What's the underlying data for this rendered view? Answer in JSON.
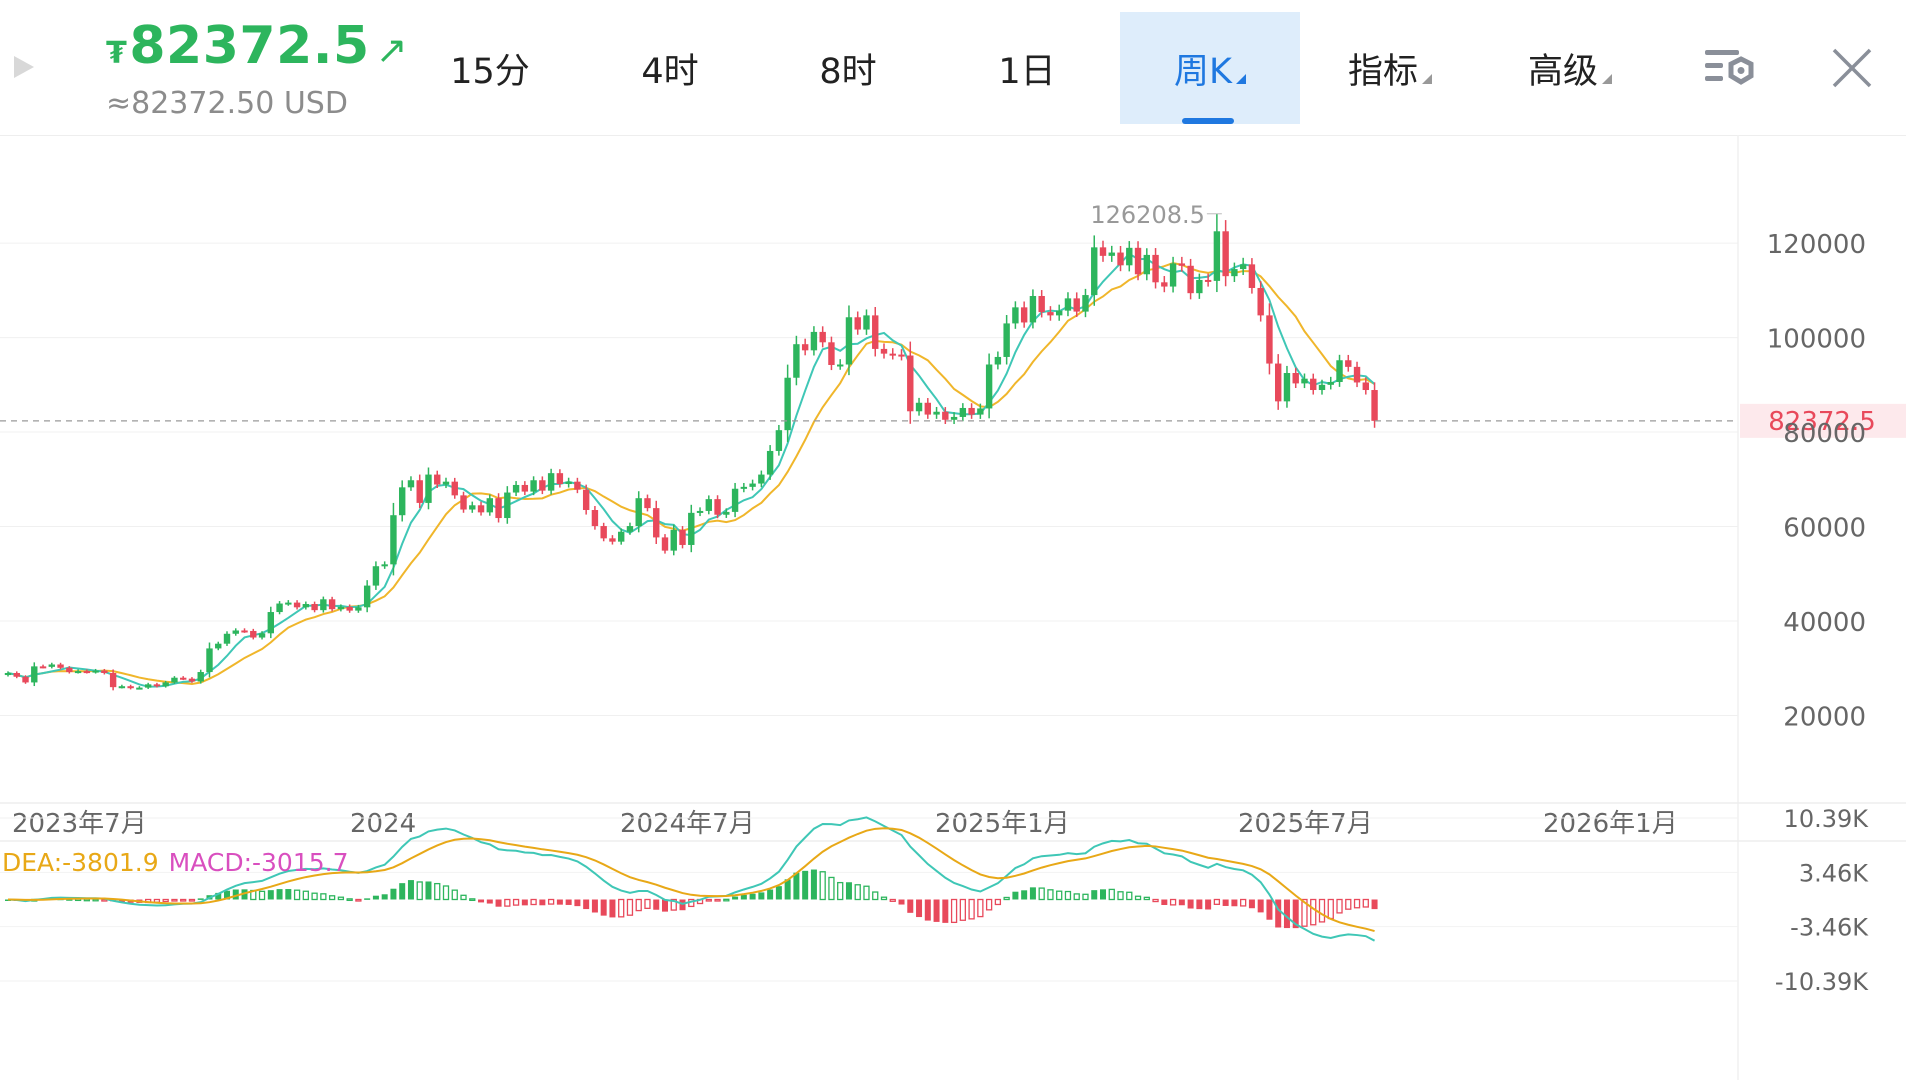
{
  "header": {
    "currency_symbol": "₮",
    "price": "82372.5",
    "price_usd": "≈82372.50 USD",
    "price_color": "#2db55d",
    "icons": {
      "play": "play-icon",
      "trend": "arrow-up-right-icon",
      "settings": "chart-settings-icon",
      "close": "close-icon"
    }
  },
  "tabs": [
    {
      "label": "15分",
      "active": false,
      "dropdown": false
    },
    {
      "label": "4时",
      "active": false,
      "dropdown": false
    },
    {
      "label": "8时",
      "active": false,
      "dropdown": false
    },
    {
      "label": "1日",
      "active": false,
      "dropdown": false
    },
    {
      "label": "周K",
      "active": true,
      "dropdown": true
    },
    {
      "label": "指标",
      "active": false,
      "dropdown": true
    },
    {
      "label": "高级",
      "active": false,
      "dropdown": true
    }
  ],
  "colors": {
    "up": "#2db55d",
    "down": "#e8495b",
    "ma_fast": "#3fc7b6",
    "ma_slow": "#f0b62b",
    "dea": "#e8a817",
    "macd_label": "#d94fbf",
    "accent": "#1f78e0"
  },
  "chart_data": [
    {
      "type": "candlestick",
      "interval": "周K",
      "x_tick_labels": [
        "2023年7月",
        "2024",
        "2024年7月",
        "2025年1月",
        "2025年7月",
        "2026年1月"
      ],
      "y_tick_labels": [
        "120000",
        "100000",
        "80000",
        "60000",
        "40000",
        "20000"
      ],
      "ylim": [
        10000,
        140000
      ],
      "grid": true,
      "max_label": "126208.5",
      "last_price": 82372.5,
      "last_price_label": "82372.5",
      "weekly_close": [
        29000,
        28200,
        27000,
        30400,
        30300,
        30800,
        30100,
        29200,
        29400,
        29200,
        29500,
        29000,
        26000,
        26200,
        25800,
        25900,
        26600,
        26200,
        27000,
        28000,
        27800,
        27200,
        29200,
        34200,
        35200,
        37300,
        38000,
        37900,
        36500,
        37400,
        41900,
        43700,
        43900,
        42900,
        43600,
        42300,
        44600,
        42500,
        43000,
        42200,
        42900,
        47500,
        51600,
        52000,
        62400,
        68300,
        69800,
        65000,
        71000,
        68900,
        69500,
        66600,
        63600,
        64500,
        63000,
        66000,
        61800,
        67200,
        68800,
        67400,
        69800,
        67600,
        71300,
        69000,
        69500,
        67800,
        63500,
        60100,
        57500,
        56800,
        58900,
        60100,
        66000,
        63900,
        57700,
        54900,
        59300,
        56100,
        62900,
        63300,
        65800,
        62500,
        63100,
        68000,
        68400,
        69100,
        71000,
        76000,
        80400,
        91500,
        98600,
        97300,
        101200,
        99000,
        94200,
        94300,
        104300,
        101700,
        104700,
        97600,
        96600,
        96400,
        96200,
        84400,
        86200,
        83700,
        84300,
        82600,
        83200,
        85100,
        83700,
        85000,
        94300,
        95900,
        103000,
        106400,
        103200,
        108800,
        105400,
        104700,
        105700,
        108300,
        105500,
        109000,
        119100,
        117300,
        118000,
        115300,
        119000,
        113400,
        117500,
        111700,
        110800,
        115700,
        115200,
        109400,
        112200,
        112000,
        122500,
        113000,
        114500,
        115500,
        110500,
        104700,
        94500,
        86500,
        92500,
        90300,
        91300,
        88900,
        90000,
        90600,
        95200,
        93800,
        90500,
        88900,
        82372.5
      ]
    },
    {
      "type": "line",
      "indicator": "MACD",
      "legend": [
        "DEA:-3801.9",
        "MACD:-3015.7"
      ],
      "y_tick_labels": [
        "10.39K",
        "3.46K",
        "-3.46K",
        "-10.39K"
      ],
      "ylim": [
        -10390,
        10390
      ]
    }
  ]
}
